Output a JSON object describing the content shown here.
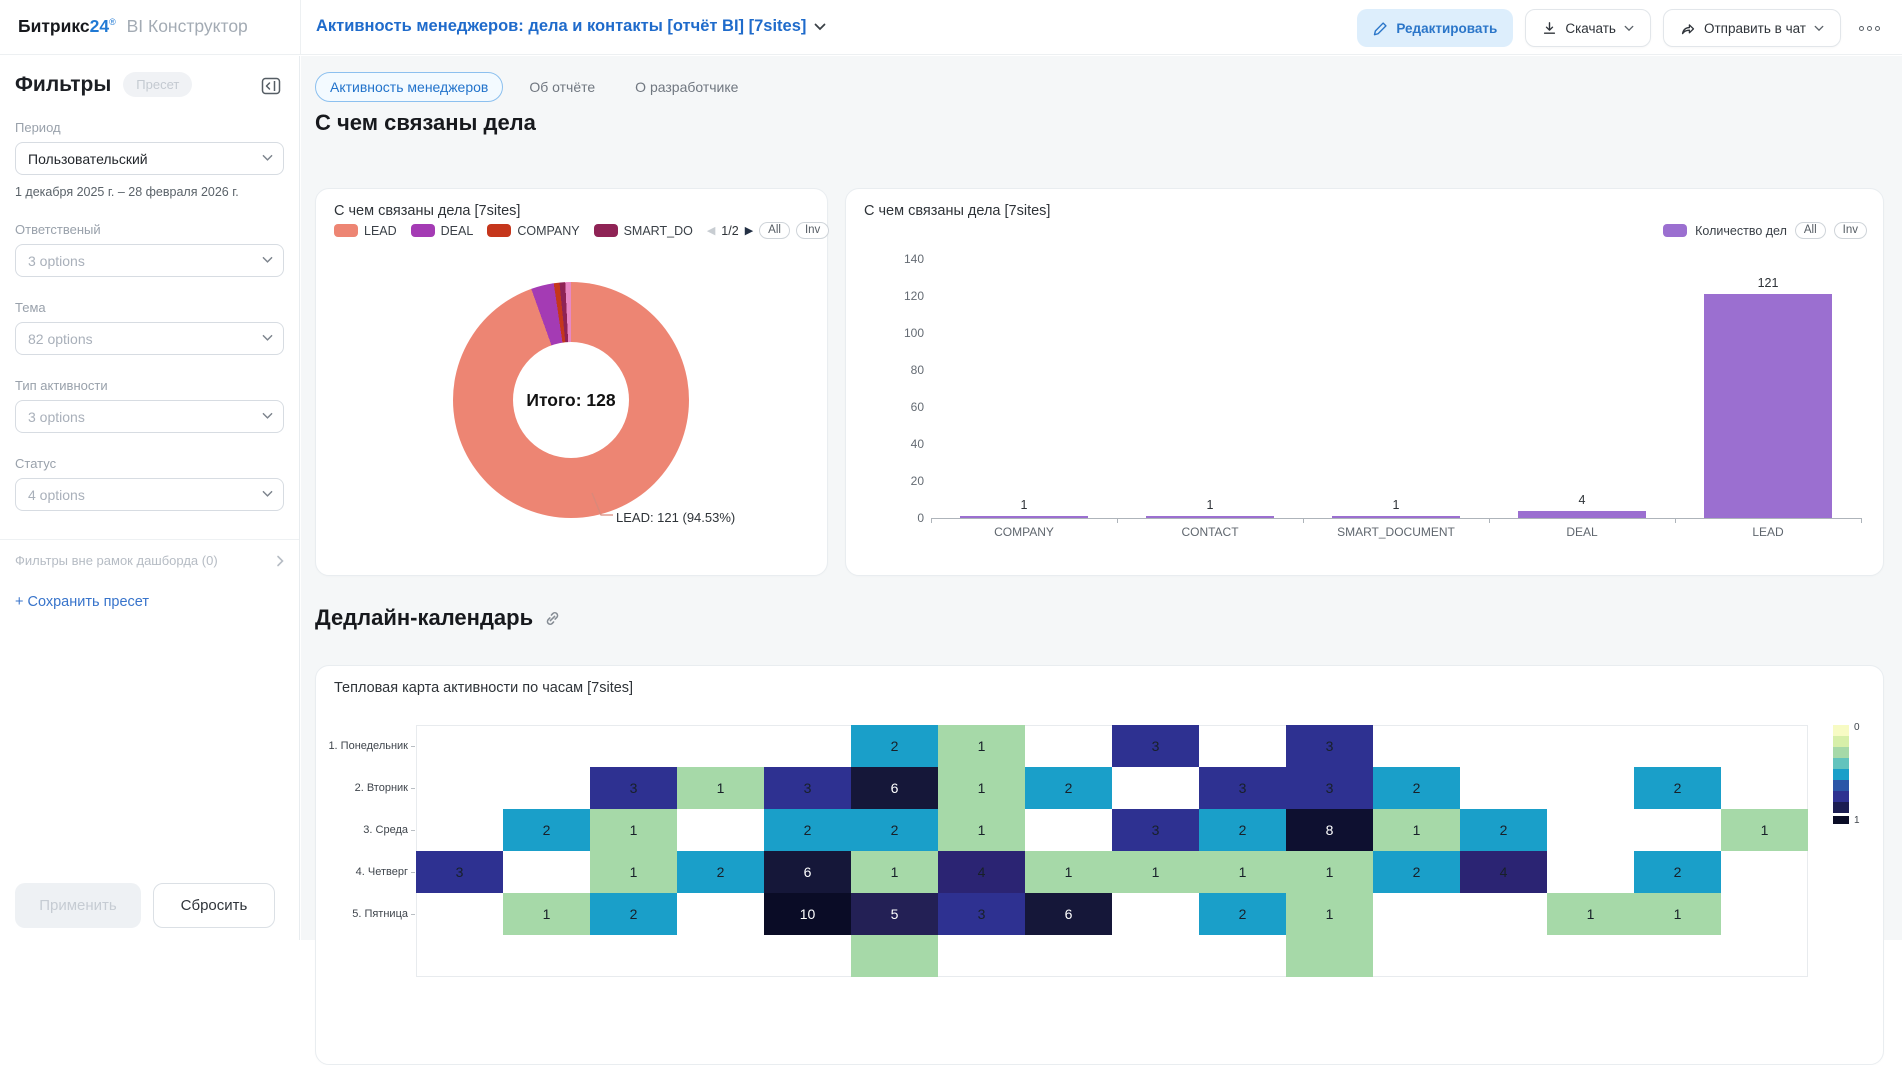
{
  "header": {
    "logo": {
      "brand": "Битрикс",
      "brand_num": "24",
      "mark": "®",
      "suffix": "BI Конструктор"
    },
    "title": "Активность менеджеров: дела и контакты [отчёт BI] [7sites]",
    "buttons": {
      "edit": "Редактировать",
      "download": "Скачать",
      "send": "Отправить в чат"
    }
  },
  "sidebar": {
    "title": "Фильтры",
    "preset_badge": "Пресет",
    "fields": [
      {
        "label": "Период",
        "value": "Пользовательский",
        "is_placeholder": false,
        "note": "1 декабря 2025 г. – 28 февраля 2026 г."
      },
      {
        "label": "Ответственый",
        "value": "3 options",
        "is_placeholder": true
      },
      {
        "label": "Тема",
        "value": "82 options",
        "is_placeholder": true
      },
      {
        "label": "Тип активности",
        "value": "3 options",
        "is_placeholder": true
      },
      {
        "label": "Статус",
        "value": "4 options",
        "is_placeholder": true
      }
    ],
    "outer_filters": "Фильтры вне рамок дашборда (0)",
    "save_preset": "+ Сохранить пресет",
    "apply": "Применить",
    "reset": "Сбросить"
  },
  "tabs": [
    {
      "label": "Активность менеджеров",
      "active": true
    },
    {
      "label": "Об отчёте",
      "active": false
    },
    {
      "label": "О разработчике",
      "active": false
    }
  ],
  "section1_title": "С чем связаны дела",
  "section2_title": "Дедлайн-календарь",
  "pie_card": {
    "title": "С чем связаны дела [7sites]",
    "legend_page": "1/2",
    "all_label": "All",
    "inv_label": "Inv",
    "legend_items": [
      {
        "label": "LEAD",
        "color": "#ed8573"
      },
      {
        "label": "DEAL",
        "color": "#a43bb4"
      },
      {
        "label": "COMPANY",
        "color": "#c5361c"
      },
      {
        "label": "SMART_DO",
        "color": "#8f2355"
      }
    ]
  },
  "bar_card": {
    "title": "С чем связаны дела [7sites]",
    "series_label": "Количество дел",
    "all_label": "All",
    "inv_label": "Inv"
  },
  "heatmap_card": {
    "title": "Тепловая карта активности по часам [7sites]"
  },
  "chart_data": [
    {
      "id": "related-activities-donut",
      "type": "pie",
      "title": "С чем связаны дела [7sites]",
      "total": 128,
      "total_label": "Итого: 128",
      "callout": "LEAD: 121 (94.53%)",
      "slices": [
        {
          "label": "LEAD",
          "value": 121,
          "pct": 94.53,
          "color": "#ed8573"
        },
        {
          "label": "DEAL",
          "value": 4,
          "pct": 3.13,
          "color": "#a43bb4"
        },
        {
          "label": "COMPANY",
          "value": 1,
          "pct": 0.78,
          "color": "#c5361c"
        },
        {
          "label": "SMART_DOCUMENT",
          "value": 1,
          "pct": 0.78,
          "color": "#8f2355"
        },
        {
          "label": "CONTACT",
          "value": 1,
          "pct": 0.78,
          "color": "#e887c4"
        }
      ]
    },
    {
      "id": "related-activities-bar",
      "type": "bar",
      "title": "С чем связаны дела [7sites]",
      "series_name": "Количество дел",
      "color": "#9b6fd0",
      "categories": [
        "COMPANY",
        "CONTACT",
        "SMART_DOCUMENT",
        "DEAL",
        "LEAD"
      ],
      "values": [
        1,
        1,
        1,
        4,
        121
      ],
      "ylim": [
        0,
        140
      ],
      "yticks": [
        0,
        20,
        40,
        60,
        80,
        100,
        120,
        140
      ],
      "grid": false,
      "legend_position": "top-right"
    },
    {
      "id": "activity-by-hour-heatmap",
      "type": "heatmap",
      "title": "Тепловая карта активности по часам [7sites]",
      "rows": [
        "1. Понедельник",
        "2. Вторник",
        "3. Среда",
        "4. Четверг",
        "5. Пятница"
      ],
      "cells": [
        [
          null,
          null,
          null,
          null,
          null,
          2,
          1,
          null,
          3,
          null,
          3,
          null,
          null,
          null,
          null,
          null
        ],
        [
          null,
          null,
          3,
          1,
          3,
          6,
          1,
          2,
          null,
          3,
          3,
          2,
          null,
          null,
          2,
          null
        ],
        [
          null,
          2,
          1,
          null,
          2,
          2,
          1,
          null,
          3,
          2,
          8,
          1,
          2,
          null,
          null,
          1
        ],
        [
          3,
          null,
          1,
          2,
          6,
          1,
          4,
          1,
          1,
          1,
          1,
          2,
          4,
          null,
          2,
          null
        ],
        [
          null,
          1,
          2,
          null,
          10,
          5,
          3,
          6,
          null,
          2,
          1,
          null,
          null,
          1,
          1,
          null
        ]
      ],
      "partial_row": [
        null,
        null,
        null,
        null,
        null,
        1,
        null,
        null,
        null,
        null,
        1,
        null,
        null,
        null,
        null,
        null
      ],
      "value_colors": {
        "1": "#a6d9a8",
        "2": "#1a9fc9",
        "3": "#2e3191",
        "4": "#2b2473",
        "5": "#232055",
        "6": "#151739",
        "8": "#0e1030",
        "10": "#0a0c26"
      },
      "white_text_from": 5,
      "scale": {
        "labels": [
          "0",
          "1"
        ],
        "colors": [
          "#f7fbc4",
          "#d7efa9",
          "#a6d9a8",
          "#62c3bd",
          "#1a9fc9",
          "#2a56a7",
          "#2e3191",
          "#1b1d52"
        ],
        "end_chip": "#0a0c26"
      }
    }
  ]
}
